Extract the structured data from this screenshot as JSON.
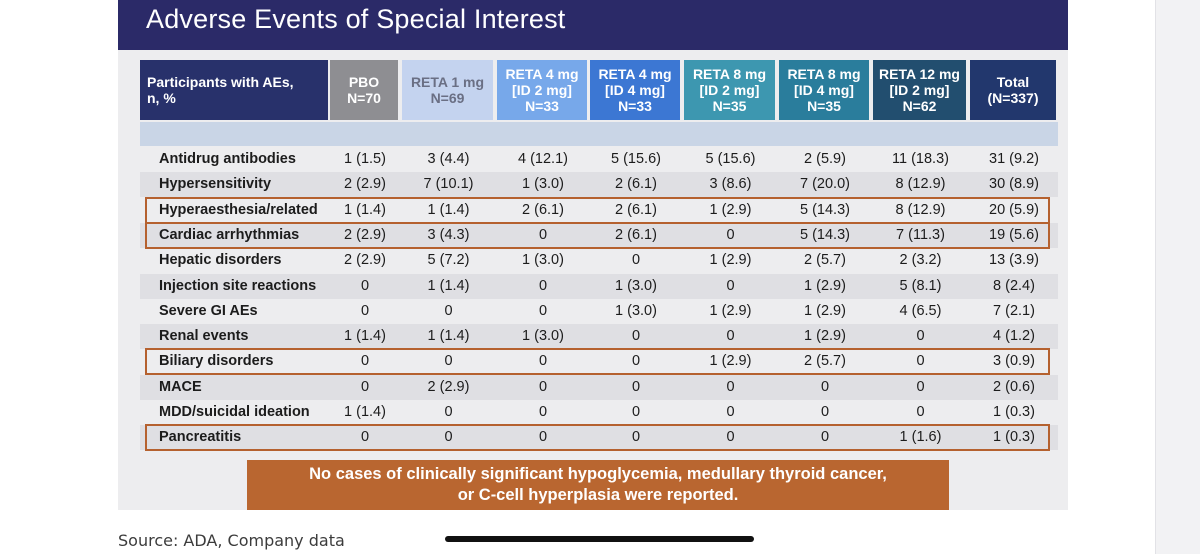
{
  "title": "Adverse Events of Special Interest",
  "columns": [
    {
      "lines": [
        "Participants with AEs,",
        "n, %"
      ],
      "color": "#28316b"
    },
    {
      "lines": [
        "PBO",
        "N=70"
      ],
      "color": "#8e8e92"
    },
    {
      "lines": [
        "RETA 1 mg",
        "N=69"
      ],
      "color": "#c4d3ef",
      "text_color": "#6a6f84"
    },
    {
      "lines": [
        "RETA 4 mg",
        "[ID 2 mg]",
        "N=33"
      ],
      "color": "#77a8ea"
    },
    {
      "lines": [
        "RETA 4 mg",
        "[ID 4 mg]",
        "N=33"
      ],
      "color": "#3c77d3"
    },
    {
      "lines": [
        "RETA 8 mg",
        "[ID 2 mg]",
        "N=35"
      ],
      "color": "#3d97b0"
    },
    {
      "lines": [
        "RETA 8 mg",
        "[ID 4 mg]",
        "N=35"
      ],
      "color": "#2a7d9c"
    },
    {
      "lines": [
        "RETA 12 mg",
        "[ID 2 mg]",
        "N=62"
      ],
      "color": "#224e6f"
    },
    {
      "lines": [
        "Total",
        "(N=337)"
      ],
      "color": "#22376d"
    }
  ],
  "rows": [
    {
      "label": "Antidrug antibodies",
      "values": [
        "1 (1.5)",
        "3 (4.4)",
        "4 (12.1)",
        "5 (15.6)",
        "5 (15.6)",
        "2 (5.9)",
        "11 (18.3)",
        "31 (9.2)"
      ],
      "highlighted": false
    },
    {
      "label": "Hypersensitivity",
      "values": [
        "2 (2.9)",
        "7 (10.1)",
        "1 (3.0)",
        "2 (6.1)",
        "3 (8.6)",
        "7 (20.0)",
        "8 (12.9)",
        "30 (8.9)"
      ],
      "highlighted": false
    },
    {
      "label": "Hyperaesthesia/related",
      "values": [
        "1 (1.4)",
        "1 (1.4)",
        "2 (6.1)",
        "2 (6.1)",
        "1 (2.9)",
        "5 (14.3)",
        "8 (12.9)",
        "20 (5.9)"
      ],
      "highlighted": true
    },
    {
      "label": "Cardiac arrhythmias",
      "values": [
        "2 (2.9)",
        "3 (4.3)",
        "0",
        "2 (6.1)",
        "0",
        "5 (14.3)",
        "7 (11.3)",
        "19 (5.6)"
      ],
      "highlighted": true
    },
    {
      "label": "Hepatic disorders",
      "values": [
        "2 (2.9)",
        "5 (7.2)",
        "1 (3.0)",
        "0",
        "1 (2.9)",
        "2 (5.7)",
        "2 (3.2)",
        "13 (3.9)"
      ],
      "highlighted": false
    },
    {
      "label": "Injection site reactions",
      "values": [
        "0",
        "1 (1.4)",
        "0",
        "1 (3.0)",
        "0",
        "1 (2.9)",
        "5 (8.1)",
        "8 (2.4)"
      ],
      "highlighted": false
    },
    {
      "label": "Severe GI AEs",
      "values": [
        "0",
        "0",
        "0",
        "1 (3.0)",
        "1 (2.9)",
        "1 (2.9)",
        "4 (6.5)",
        "7 (2.1)"
      ],
      "highlighted": false
    },
    {
      "label": "Renal events",
      "values": [
        "1 (1.4)",
        "1 (1.4)",
        "1 (3.0)",
        "0",
        "0",
        "1 (2.9)",
        "0",
        "4 (1.2)"
      ],
      "highlighted": false
    },
    {
      "label": "Biliary disorders",
      "values": [
        "0",
        "0",
        "0",
        "0",
        "1 (2.9)",
        "2 (5.7)",
        "0",
        "3 (0.9)"
      ],
      "highlighted": true
    },
    {
      "label": "MACE",
      "values": [
        "0",
        "2 (2.9)",
        "0",
        "0",
        "0",
        "0",
        "0",
        "2 (0.6)"
      ],
      "highlighted": false
    },
    {
      "label": "MDD/suicidal ideation",
      "values": [
        "1 (1.4)",
        "0",
        "0",
        "0",
        "0",
        "0",
        "0",
        "1 (0.3)"
      ],
      "highlighted": false
    },
    {
      "label": "Pancreatitis",
      "values": [
        "0",
        "0",
        "0",
        "0",
        "0",
        "0",
        "1 (1.6)",
        "1 (0.3)"
      ],
      "highlighted": true
    }
  ],
  "note": {
    "lines": [
      "No cases of clinically significant hypoglycemia, medullary thyroid cancer,",
      "or C-cell hyperplasia were reported."
    ],
    "color": "#b96630"
  },
  "source": "Source: ADA, Company data",
  "colors": {
    "title_bar": "#2b2a68",
    "highlight_border": "#b5612f",
    "subheader_band": "#c9d5e6"
  }
}
